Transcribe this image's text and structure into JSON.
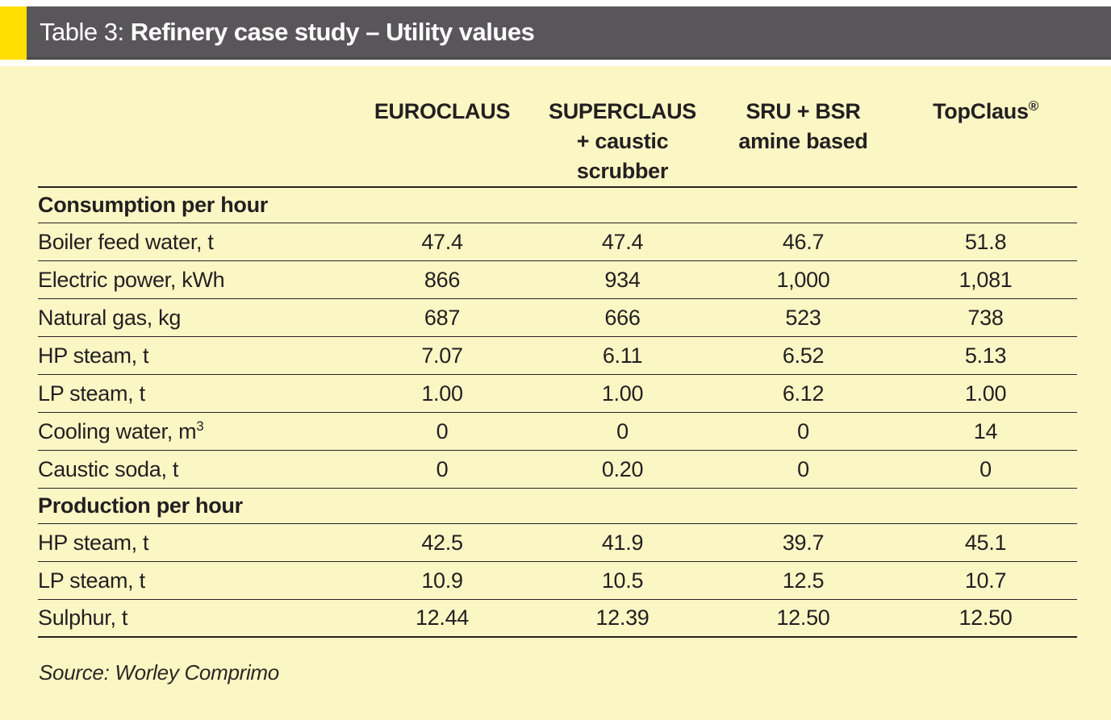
{
  "header": {
    "label": "Table 3: ",
    "title": "Refinery case study – Utility values"
  },
  "table": {
    "columns": [
      {
        "line1": "EUROCLAUS"
      },
      {
        "line1": "SUPERCLAUS",
        "line2": "+ caustic",
        "line3": "scrubber"
      },
      {
        "line1": "SRU + BSR",
        "line2": "amine based"
      },
      {
        "line1": "TopClaus",
        "sup": "®"
      }
    ],
    "sections": [
      {
        "title": "Consumption per hour",
        "rows": [
          {
            "label": "Boiler feed water, t",
            "values": [
              "47.4",
              "47.4",
              "46.7",
              "51.8"
            ]
          },
          {
            "label": "Electric power, kWh",
            "values": [
              "866",
              "934",
              "1,000",
              "1,081"
            ]
          },
          {
            "label": "Natural gas, kg",
            "values": [
              "687",
              "666",
              "523",
              "738"
            ]
          },
          {
            "label": "HP steam, t",
            "values": [
              "7.07",
              "6.11",
              "6.52",
              "5.13"
            ]
          },
          {
            "label": "LP steam, t",
            "values": [
              "1.00",
              "1.00",
              "6.12",
              "1.00"
            ]
          },
          {
            "label": "Cooling water, m",
            "label_sup": "3",
            "values": [
              "0",
              "0",
              "0",
              "14"
            ]
          },
          {
            "label": "Caustic soda, t",
            "values": [
              "0",
              "0.20",
              "0",
              "0"
            ]
          }
        ]
      },
      {
        "title": "Production per hour",
        "rows": [
          {
            "label": "HP steam, t",
            "values": [
              "42.5",
              "41.9",
              "39.7",
              "45.1"
            ]
          },
          {
            "label": "LP steam, t",
            "values": [
              "10.9",
              "10.5",
              "12.5",
              "10.7"
            ]
          },
          {
            "label": "Sulphur, t",
            "values": [
              "12.44",
              "12.39",
              "12.50",
              "12.50"
            ]
          }
        ]
      }
    ]
  },
  "source": "Source: Worley Comprimo",
  "colors": {
    "accent_yellow": "#ffde00",
    "bar_gray": "#595659",
    "background_yellow": "#fbf7c5",
    "text": "#231f20"
  },
  "chart_data": {
    "type": "table",
    "title": "Table 3: Refinery case study – Utility values",
    "columns": [
      "EUROCLAUS",
      "SUPERCLAUS + caustic scrubber",
      "SRU + BSR amine based",
      "TopClaus®"
    ],
    "sections": [
      {
        "title": "Consumption per hour",
        "rows": [
          {
            "label": "Boiler feed water, t",
            "values": [
              47.4,
              47.4,
              46.7,
              51.8
            ]
          },
          {
            "label": "Electric power, kWh",
            "values": [
              866,
              934,
              1000,
              1081
            ]
          },
          {
            "label": "Natural gas, kg",
            "values": [
              687,
              666,
              523,
              738
            ]
          },
          {
            "label": "HP steam, t",
            "values": [
              7.07,
              6.11,
              6.52,
              5.13
            ]
          },
          {
            "label": "LP steam, t",
            "values": [
              1.0,
              1.0,
              6.12,
              1.0
            ]
          },
          {
            "label": "Cooling water, m3",
            "values": [
              0,
              0,
              0,
              14
            ]
          },
          {
            "label": "Caustic soda, t",
            "values": [
              0,
              0.2,
              0,
              0
            ]
          }
        ]
      },
      {
        "title": "Production per hour",
        "rows": [
          {
            "label": "HP steam, t",
            "values": [
              42.5,
              41.9,
              39.7,
              45.1
            ]
          },
          {
            "label": "LP steam, t",
            "values": [
              10.9,
              10.5,
              12.5,
              10.7
            ]
          },
          {
            "label": "Sulphur, t",
            "values": [
              12.44,
              12.39,
              12.5,
              12.5
            ]
          }
        ]
      }
    ],
    "source": "Source: Worley Comprimo"
  }
}
